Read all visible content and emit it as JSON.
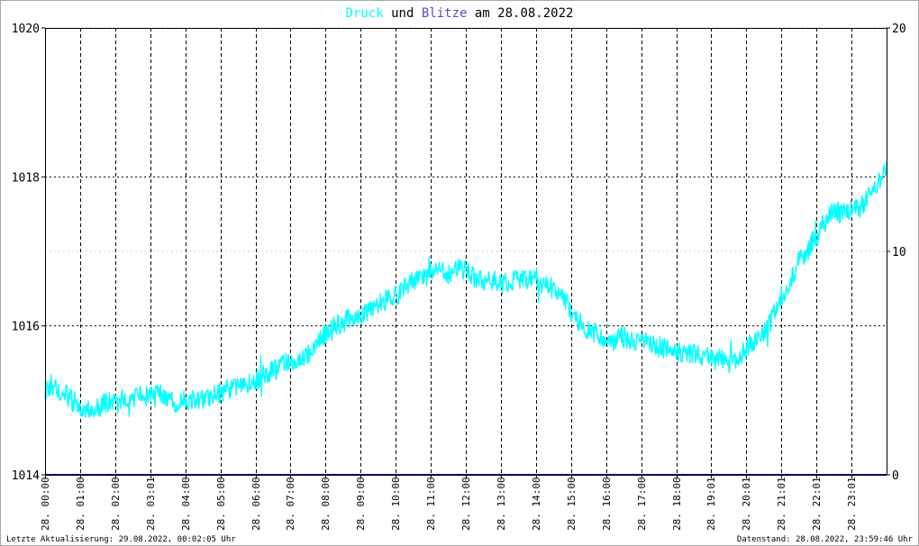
{
  "title": {
    "part1": "Druck",
    "part2": " und ",
    "part3": "Blitze",
    "part4": " am 28.08.2022"
  },
  "footer": {
    "left": "Letzte Aktualisierung: 29.08.2022, 00:02:05 Uhr",
    "right": "Datenstand: 28.08.2022, 23:59:46 Uhr"
  },
  "colors": {
    "pressure": "#00ffff",
    "lightning": "#5050c8",
    "baseline": "#000060",
    "grid": "#000000"
  },
  "chart_data": {
    "type": "line",
    "title": "Druck und Blitze am 28.08.2022",
    "ylim_left": [
      1014,
      1020
    ],
    "ylim_right": [
      0,
      20
    ],
    "yticks_left": [
      "1014",
      "1016",
      "1018",
      "1020"
    ],
    "yticks_right": [
      "0",
      "10",
      "20"
    ],
    "xlim_hours": [
      0,
      24
    ],
    "xticks": [
      "28. 00:00",
      "28. 01:00",
      "28. 02:00",
      "28. 03:01",
      "28. 04:00",
      "28. 05:00",
      "28. 06:00",
      "28. 07:00",
      "28. 08:00",
      "28. 09:00",
      "28. 10:00",
      "28. 11:00",
      "28. 12:00",
      "28. 13:00",
      "28. 14:00",
      "28. 15:00",
      "28. 16:00",
      "28. 17:00",
      "28. 18:00",
      "28. 19:01",
      "28. 20:01",
      "28. 21:01",
      "28. 22:01",
      "28. 23:01"
    ],
    "series": [
      {
        "name": "Druck",
        "axis": "left",
        "x_hours": [
          0,
          0.25,
          0.5,
          0.75,
          1,
          1.25,
          1.5,
          1.75,
          2,
          2.25,
          2.5,
          2.75,
          3,
          3.25,
          3.5,
          3.75,
          4,
          4.25,
          4.5,
          4.75,
          5,
          5.25,
          5.5,
          5.75,
          6,
          6.25,
          6.5,
          6.75,
          7,
          7.25,
          7.5,
          7.75,
          8,
          8.25,
          8.5,
          8.75,
          9,
          9.25,
          9.5,
          9.75,
          10,
          10.25,
          10.5,
          10.75,
          11,
          11.25,
          11.5,
          11.75,
          12,
          12.25,
          12.5,
          12.75,
          13,
          13.25,
          13.5,
          13.75,
          14,
          14.25,
          14.5,
          14.75,
          15,
          15.25,
          15.5,
          15.75,
          16,
          16.25,
          16.5,
          16.75,
          17,
          17.25,
          17.5,
          17.75,
          18,
          18.25,
          18.5,
          18.75,
          19,
          19.25,
          19.5,
          19.75,
          20,
          20.25,
          20.5,
          20.75,
          21,
          21.25,
          21.5,
          21.75,
          22,
          22.25,
          22.5,
          22.75,
          23,
          23.25,
          23.5,
          23.75,
          24
        ],
        "values": [
          1015.15,
          1015.2,
          1015.1,
          1015.0,
          1014.92,
          1014.88,
          1014.9,
          1014.98,
          1015.0,
          1015.02,
          1015.0,
          1015.05,
          1015.05,
          1015.1,
          1015.0,
          1014.95,
          1015.0,
          1015.0,
          1015.0,
          1015.05,
          1015.1,
          1015.15,
          1015.2,
          1015.15,
          1015.25,
          1015.35,
          1015.4,
          1015.45,
          1015.55,
          1015.5,
          1015.6,
          1015.75,
          1015.9,
          1016.0,
          1016.05,
          1016.1,
          1016.15,
          1016.2,
          1016.3,
          1016.35,
          1016.4,
          1016.5,
          1016.6,
          1016.65,
          1016.7,
          1016.75,
          1016.7,
          1016.8,
          1016.75,
          1016.65,
          1016.6,
          1016.62,
          1016.55,
          1016.6,
          1016.65,
          1016.6,
          1016.65,
          1016.55,
          1016.5,
          1016.4,
          1016.2,
          1016.05,
          1015.95,
          1015.9,
          1015.82,
          1015.8,
          1015.85,
          1015.8,
          1015.78,
          1015.75,
          1015.72,
          1015.68,
          1015.65,
          1015.65,
          1015.62,
          1015.6,
          1015.55,
          1015.55,
          1015.5,
          1015.55,
          1015.7,
          1015.8,
          1015.9,
          1016.1,
          1016.4,
          1016.6,
          1016.85,
          1017.0,
          1017.2,
          1017.4,
          1017.55,
          1017.5,
          1017.55,
          1017.6,
          1017.75,
          1017.9,
          1018.1
        ]
      },
      {
        "name": "Blitze",
        "axis": "right",
        "x_hours": [
          0,
          24
        ],
        "values": [
          0,
          0
        ]
      }
    ],
    "grid": true
  }
}
